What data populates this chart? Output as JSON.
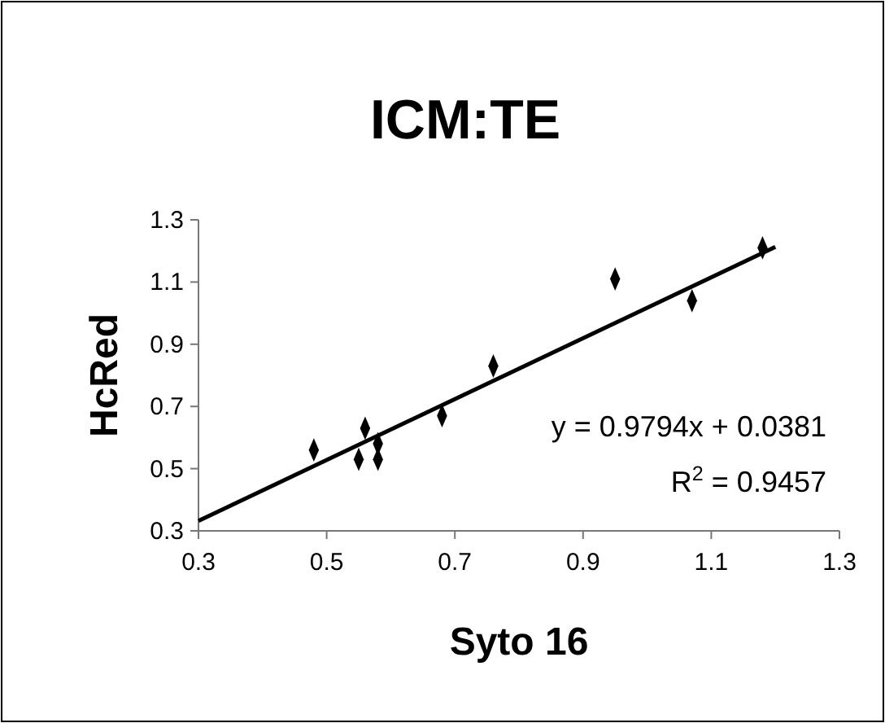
{
  "chart_data": {
    "type": "scatter",
    "title": "ICM:TE",
    "xlabel": "Syto 16",
    "ylabel": "HcRed",
    "xlim": [
      0.3,
      1.3
    ],
    "xticks": [
      0.3,
      0.5,
      0.7,
      0.9,
      1.1,
      1.3
    ],
    "ylim": [
      0.3,
      1.3
    ],
    "yticks": [
      0.3,
      0.5,
      0.7,
      0.9,
      1.1,
      1.3
    ],
    "grid": false,
    "series": [
      {
        "marker": "diamond",
        "color": "#000000",
        "x": [
          0.48,
          0.55,
          0.56,
          0.58,
          0.58,
          0.68,
          0.76,
          0.95,
          1.07,
          1.18
        ],
        "values": [
          0.56,
          0.53,
          0.63,
          0.53,
          0.58,
          0.67,
          0.83,
          1.11,
          1.04,
          1.21
        ]
      },
      {
        "type": "line",
        "marker": "none",
        "color": "#000000",
        "line_style": "solid",
        "x": [
          0.3,
          1.2
        ],
        "values": [
          0.332,
          1.213
        ]
      }
    ],
    "annotations": [
      "y = 0.9794x + 0.0381",
      "R$^{2}$ = 0.9457"
    ]
  }
}
